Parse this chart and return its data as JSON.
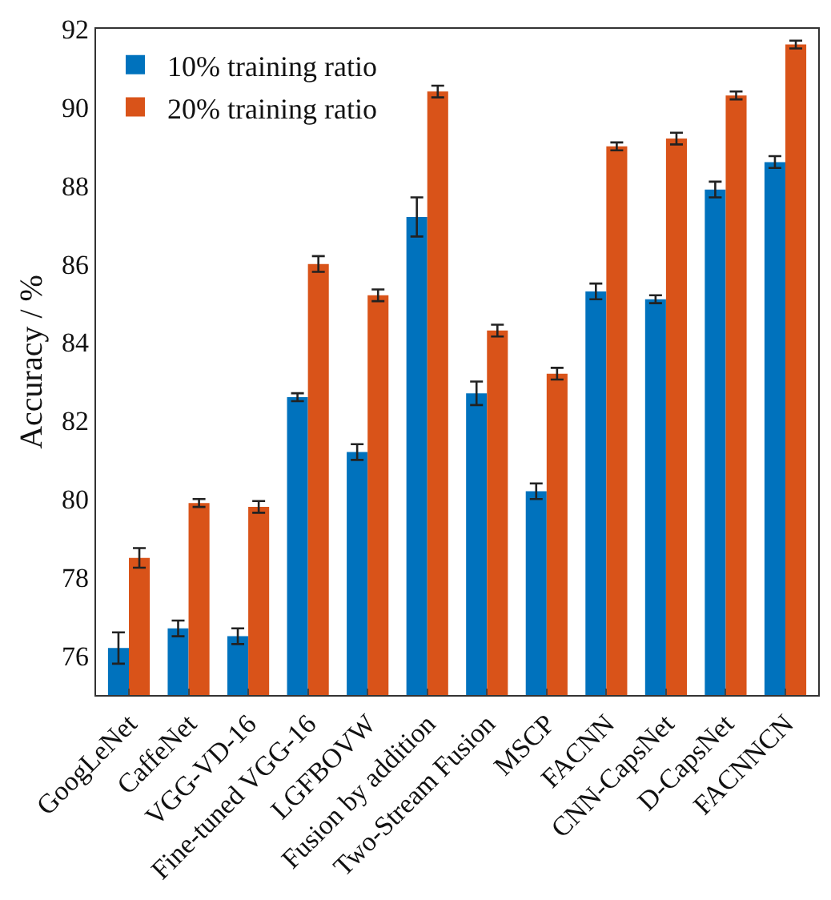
{
  "chart_data": {
    "type": "bar",
    "ylabel": "Accuracy / %",
    "categories": [
      "GoogLeNet",
      "CaffeNet",
      "VGG-VD-16",
      "Fine-tuned VGG-16",
      "LGFBOVW",
      "Fusion by addition",
      "Two-Stream Fusion",
      "MSCP",
      "FACNN",
      "CNN-CapsNet",
      "D-CapsNet",
      "FACNNCN"
    ],
    "series": [
      {
        "name": "10% training ratio",
        "color": "#0072bd",
        "values": [
          76.2,
          76.7,
          76.5,
          82.6,
          81.2,
          87.2,
          82.7,
          80.2,
          85.3,
          85.1,
          87.9,
          88.6
        ],
        "errors": [
          0.4,
          0.2,
          0.2,
          0.1,
          0.2,
          0.5,
          0.3,
          0.2,
          0.2,
          0.1,
          0.2,
          0.15
        ]
      },
      {
        "name": "20% training ratio",
        "color": "#d95319",
        "values": [
          78.5,
          79.9,
          79.8,
          86.0,
          85.2,
          90.4,
          84.3,
          83.2,
          89.0,
          89.2,
          90.3,
          91.6
        ],
        "errors": [
          0.25,
          0.1,
          0.15,
          0.2,
          0.15,
          0.15,
          0.15,
          0.15,
          0.1,
          0.15,
          0.1,
          0.1
        ]
      }
    ],
    "ylim": [
      75,
      92
    ],
    "yticks": [
      76,
      78,
      80,
      82,
      84,
      86,
      88,
      90,
      92
    ],
    "grid": false,
    "legend": "top left"
  }
}
